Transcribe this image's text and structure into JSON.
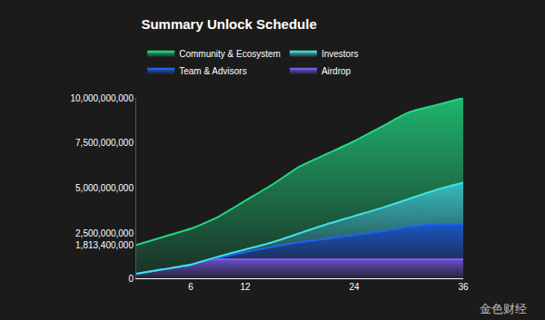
{
  "chart_data": {
    "type": "area",
    "title": "Summary Unlock Schedule",
    "stacked": true,
    "legend": "top",
    "grid": false,
    "x": [
      0,
      3,
      6,
      7,
      9,
      12,
      15,
      18,
      21,
      24,
      27,
      30,
      33,
      36
    ],
    "series": [
      {
        "name": "Community & Ecosystem",
        "color": "#20d982",
        "values": [
          1600000000,
          1800000000,
          2000000000,
          2050000000,
          2200000000,
          2700000000,
          3200000000,
          3700000000,
          3900000000,
          4150000000,
          4500000000,
          4800000000,
          4700000000,
          4700000000
        ]
      },
      {
        "name": "Investors",
        "color": "#3fe3e6",
        "values": [
          0,
          0,
          0,
          0,
          50000000,
          150000000,
          250000000,
          500000000,
          800000000,
          1050000000,
          1300000000,
          1550000000,
          1900000000,
          2300000000
        ]
      },
      {
        "name": "Team & Advisors",
        "color": "#1c64ee",
        "values": [
          0,
          0,
          0,
          0,
          100000000,
          400000000,
          700000000,
          950000000,
          1150000000,
          1350000000,
          1550000000,
          1800000000,
          1950000000,
          1950000000
        ]
      },
      {
        "name": "Airdrop",
        "color": "#7c5cf2",
        "values": [
          250000000,
          500000000,
          750000000,
          900000000,
          1050000000,
          1050000000,
          1050000000,
          1050000000,
          1050000000,
          1050000000,
          1050000000,
          1050000000,
          1050000000,
          1050000000
        ]
      }
    ],
    "xlim": [
      0,
      36
    ],
    "xticks": [
      6,
      12,
      24,
      36
    ],
    "ylim": [
      0,
      10000000000
    ],
    "yticks": [
      0,
      {
        "value": 1813400000,
        "label": "1,813,400,000"
      },
      {
        "value": 2500000000,
        "label": "2,500,000,000"
      },
      {
        "value": 5000000000,
        "label": "5,000,000,000"
      },
      {
        "value": 7500000000,
        "label": "7,500,000,000"
      },
      {
        "value": 10000000000,
        "label": "10,000,000,000"
      }
    ],
    "annotations": [
      "金色财经"
    ]
  }
}
